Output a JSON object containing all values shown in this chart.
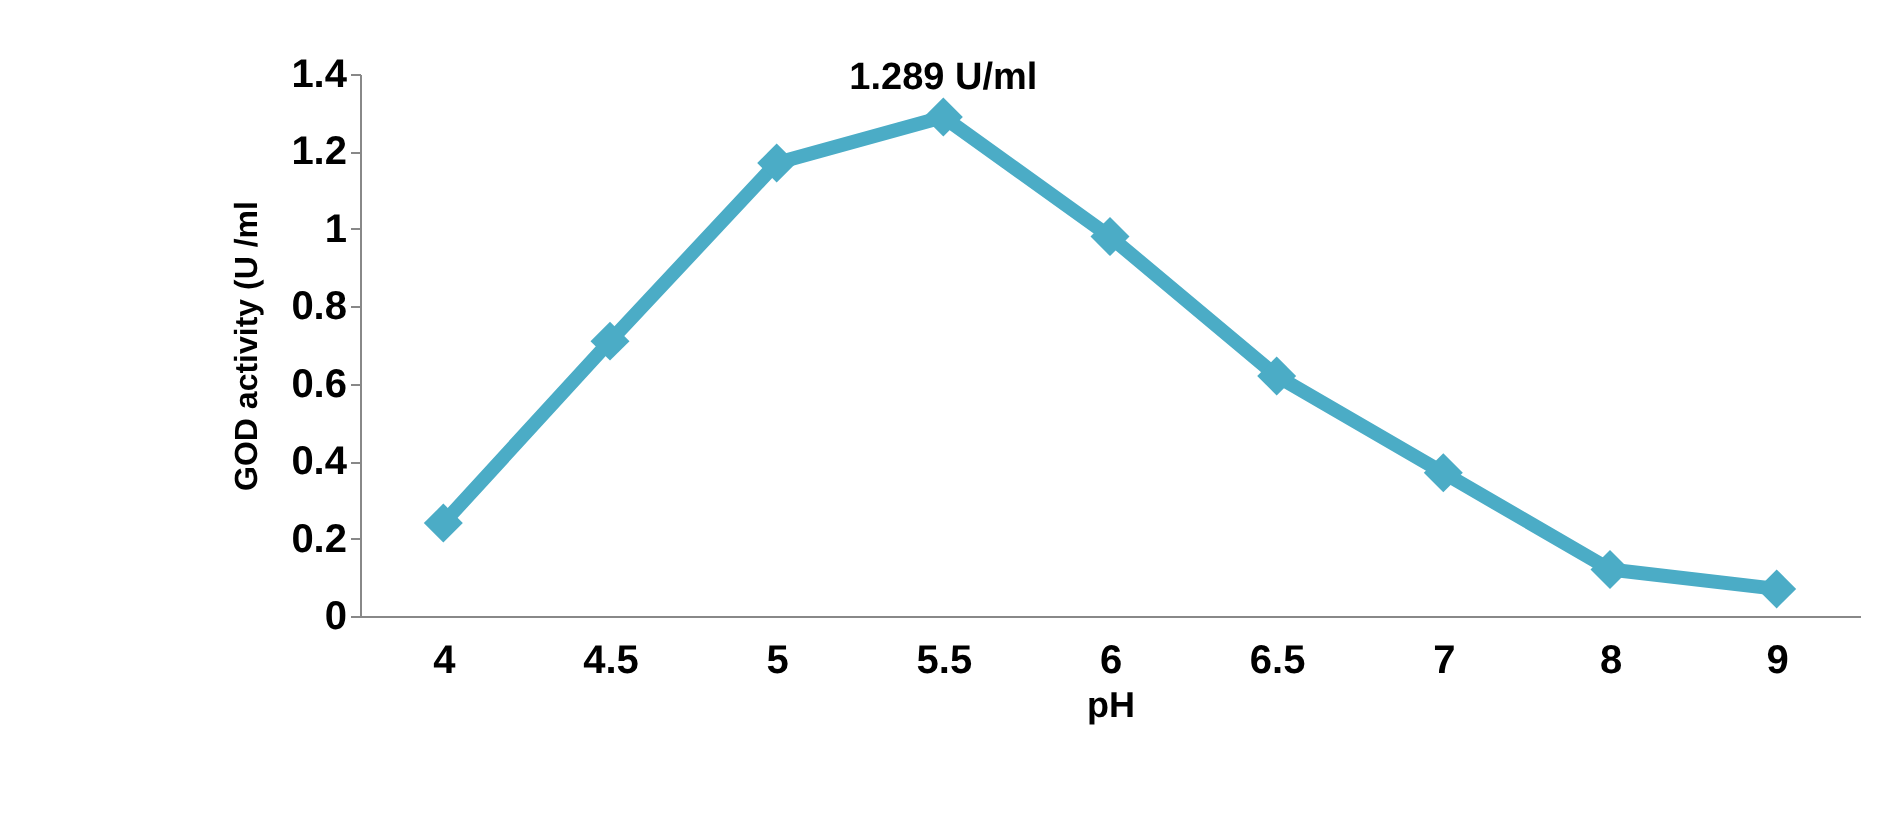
{
  "chart_data": {
    "type": "line",
    "xlabel": "pH",
    "ylabel": "GOD activity (U /ml",
    "categories": [
      "4",
      "4.5",
      "5",
      "5.5",
      "6",
      "6.5",
      "7",
      "8",
      "9"
    ],
    "series": [
      {
        "color": "#4bacc6",
        "values": [
          0.24,
          0.71,
          1.17,
          1.289,
          0.98,
          0.62,
          0.37,
          0.12,
          0.07
        ]
      }
    ],
    "ylim": [
      0,
      1.4
    ],
    "yticks": [
      0,
      0.2,
      0.4,
      0.6,
      0.8,
      1,
      1.2,
      1.4
    ],
    "annotations": [
      {
        "text": "1.289 U/ml",
        "x": "5.5",
        "y": 1.289
      }
    ],
    "marker": "diamond",
    "grid": false,
    "legend": false
  }
}
